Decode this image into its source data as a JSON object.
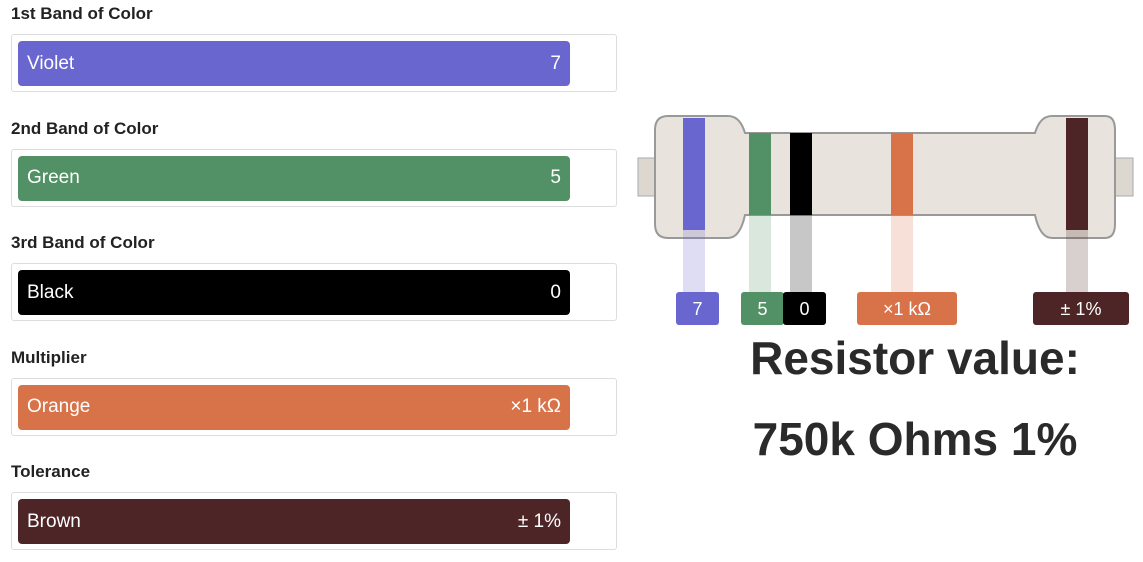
{
  "bands": [
    {
      "label": "1st Band of Color",
      "color_name": "Violet",
      "value": "7",
      "color": "#6a66cf"
    },
    {
      "label": "2nd Band of Color",
      "color_name": "Green",
      "value": "5",
      "color": "#529065"
    },
    {
      "label": "3rd Band of Color",
      "color_name": "Black",
      "value": "0",
      "color": "#000000"
    },
    {
      "label": "Multiplier",
      "color_name": "Orange",
      "value": "×1 kΩ",
      "color": "#d87349"
    },
    {
      "label": "Tolerance",
      "color_name": "Brown",
      "value": "± 1%",
      "color": "#4e2526"
    }
  ],
  "result": {
    "heading": "Resistor value:",
    "value": "750k Ohms 1%"
  }
}
